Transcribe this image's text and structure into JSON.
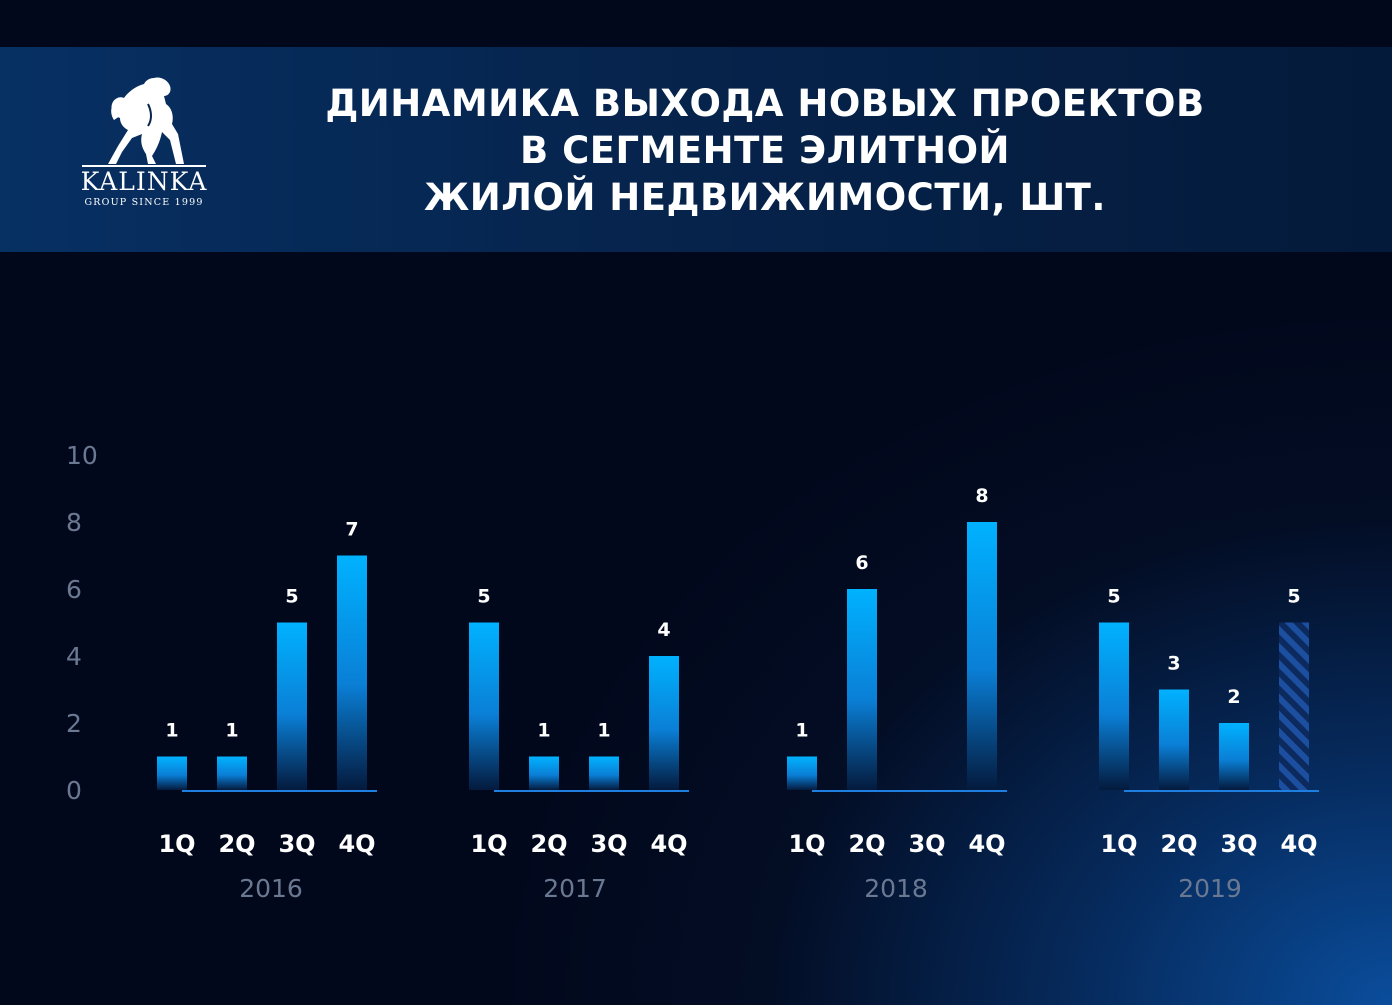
{
  "brand": {
    "name": "KALINKA",
    "tagline": "GROUP SINCE 1999",
    "logo_icon": "horse-icon"
  },
  "title_lines": [
    "ДИНАМИКА ВЫХОДА НОВЫХ ПРОЕКТОВ",
    "В СЕГМЕНТЕ ЭЛИТНОЙ",
    "ЖИЛОЙ НЕДВИЖИМОСТИ, ШТ."
  ],
  "colors": {
    "bar_top": "#00b2ff",
    "bar_bottom": "#041a3d",
    "baseline": "#1e7fe0",
    "hatched_bar": "#1c4fa0"
  },
  "chart_data": {
    "type": "bar",
    "title": "ДИНАМИКА ВЫХОДА НОВЫХ ПРОЕКТОВ В СЕГМЕНТЕ ЭЛИТНОЙ ЖИЛОЙ НЕДВИЖИМОСТИ, ШТ.",
    "xlabel": "",
    "ylabel": "",
    "ylim": [
      0,
      10
    ],
    "yticks": [
      "0",
      "2",
      "4",
      "6",
      "8",
      "10"
    ],
    "grid": false,
    "legend": "none",
    "groups": [
      {
        "year": "2016",
        "quarters": [
          "1Q",
          "2Q",
          "3Q",
          "4Q"
        ],
        "values": [
          1,
          1,
          5,
          7
        ],
        "labels": [
          "1",
          "1",
          "5",
          "7"
        ]
      },
      {
        "year": "2017",
        "quarters": [
          "1Q",
          "2Q",
          "3Q",
          "4Q"
        ],
        "values": [
          5,
          1,
          1,
          4
        ],
        "labels": [
          "5",
          "1",
          "1",
          "4"
        ]
      },
      {
        "year": "2018",
        "quarters": [
          "1Q",
          "2Q",
          "3Q",
          "4Q"
        ],
        "values": [
          1,
          6,
          0,
          8
        ],
        "labels": [
          "1",
          "6",
          "",
          "8"
        ]
      },
      {
        "year": "2019",
        "quarters": [
          "1Q",
          "2Q",
          "3Q",
          "4Q"
        ],
        "values": [
          5,
          3,
          2,
          5
        ],
        "labels": [
          "5",
          "3",
          "2",
          "5"
        ],
        "hatched": [
          false,
          false,
          false,
          true
        ]
      }
    ]
  }
}
